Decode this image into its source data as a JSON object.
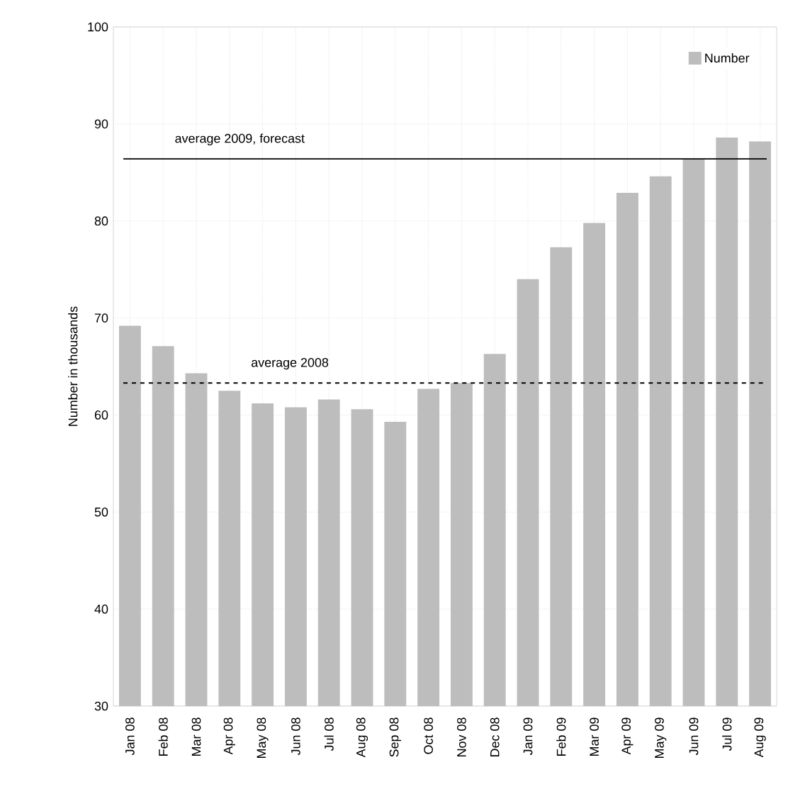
{
  "chart_data": {
    "type": "bar",
    "ylabel": "Number in thousands",
    "categories": [
      "Jan 08",
      "Feb 08",
      "Mar 08",
      "Apr 08",
      "May 08",
      "Jun 08",
      "Jul 08",
      "Aug 08",
      "Sep 08",
      "Oct 08",
      "Nov 08",
      "Dec 08",
      "Jan 09",
      "Feb 09",
      "Mar 09",
      "Apr 09",
      "May 09",
      "Jun 09",
      "Jul 09",
      "Aug 09"
    ],
    "series": [
      {
        "name": "Number",
        "color": "#bdbdbd",
        "values": [
          69.2,
          67.1,
          64.3,
          62.5,
          61.2,
          60.8,
          61.6,
          60.6,
          59.3,
          62.7,
          63.3,
          66.3,
          74.0,
          77.3,
          79.8,
          82.9,
          84.6,
          86.4,
          88.6,
          88.2
        ]
      }
    ],
    "ylim": [
      30,
      100
    ],
    "yticks": [
      30,
      40,
      50,
      60,
      70,
      80,
      90,
      100
    ],
    "ref_lines": [
      {
        "axis": "y",
        "value": 86.4,
        "label": "average 2009, forecast",
        "color": "#000000",
        "line_style": "solid"
      },
      {
        "axis": "y",
        "value": 63.3,
        "label": "average 2008",
        "color": "#000000",
        "line_style": "dashed"
      }
    ],
    "grid": true,
    "legend": "top right"
  }
}
